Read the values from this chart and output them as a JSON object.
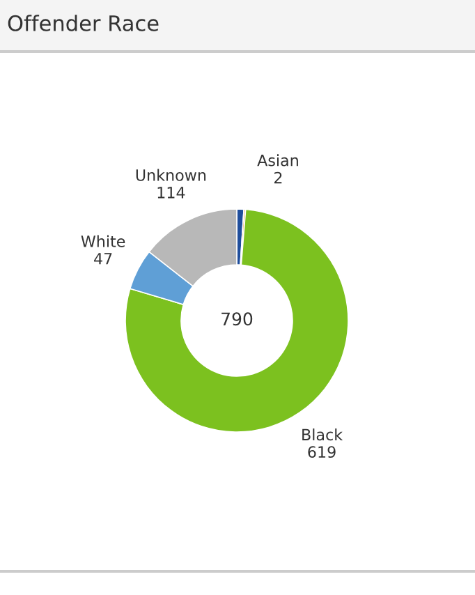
{
  "chart_data": {
    "type": "donut",
    "title": "Offender Race",
    "categories": [
      null,
      "Asian",
      "Black",
      "White",
      "Unknown"
    ],
    "values": [
      8,
      2,
      619,
      47,
      114
    ],
    "value_labels": [
      null,
      "2",
      "619",
      "47",
      "114"
    ],
    "colors": [
      "#1f4e9c",
      "#f28e2b",
      "#7cc11f",
      "#5f9fd6",
      "#b8b8b8"
    ],
    "annotations": [
      "790"
    ],
    "legend": false
  }
}
